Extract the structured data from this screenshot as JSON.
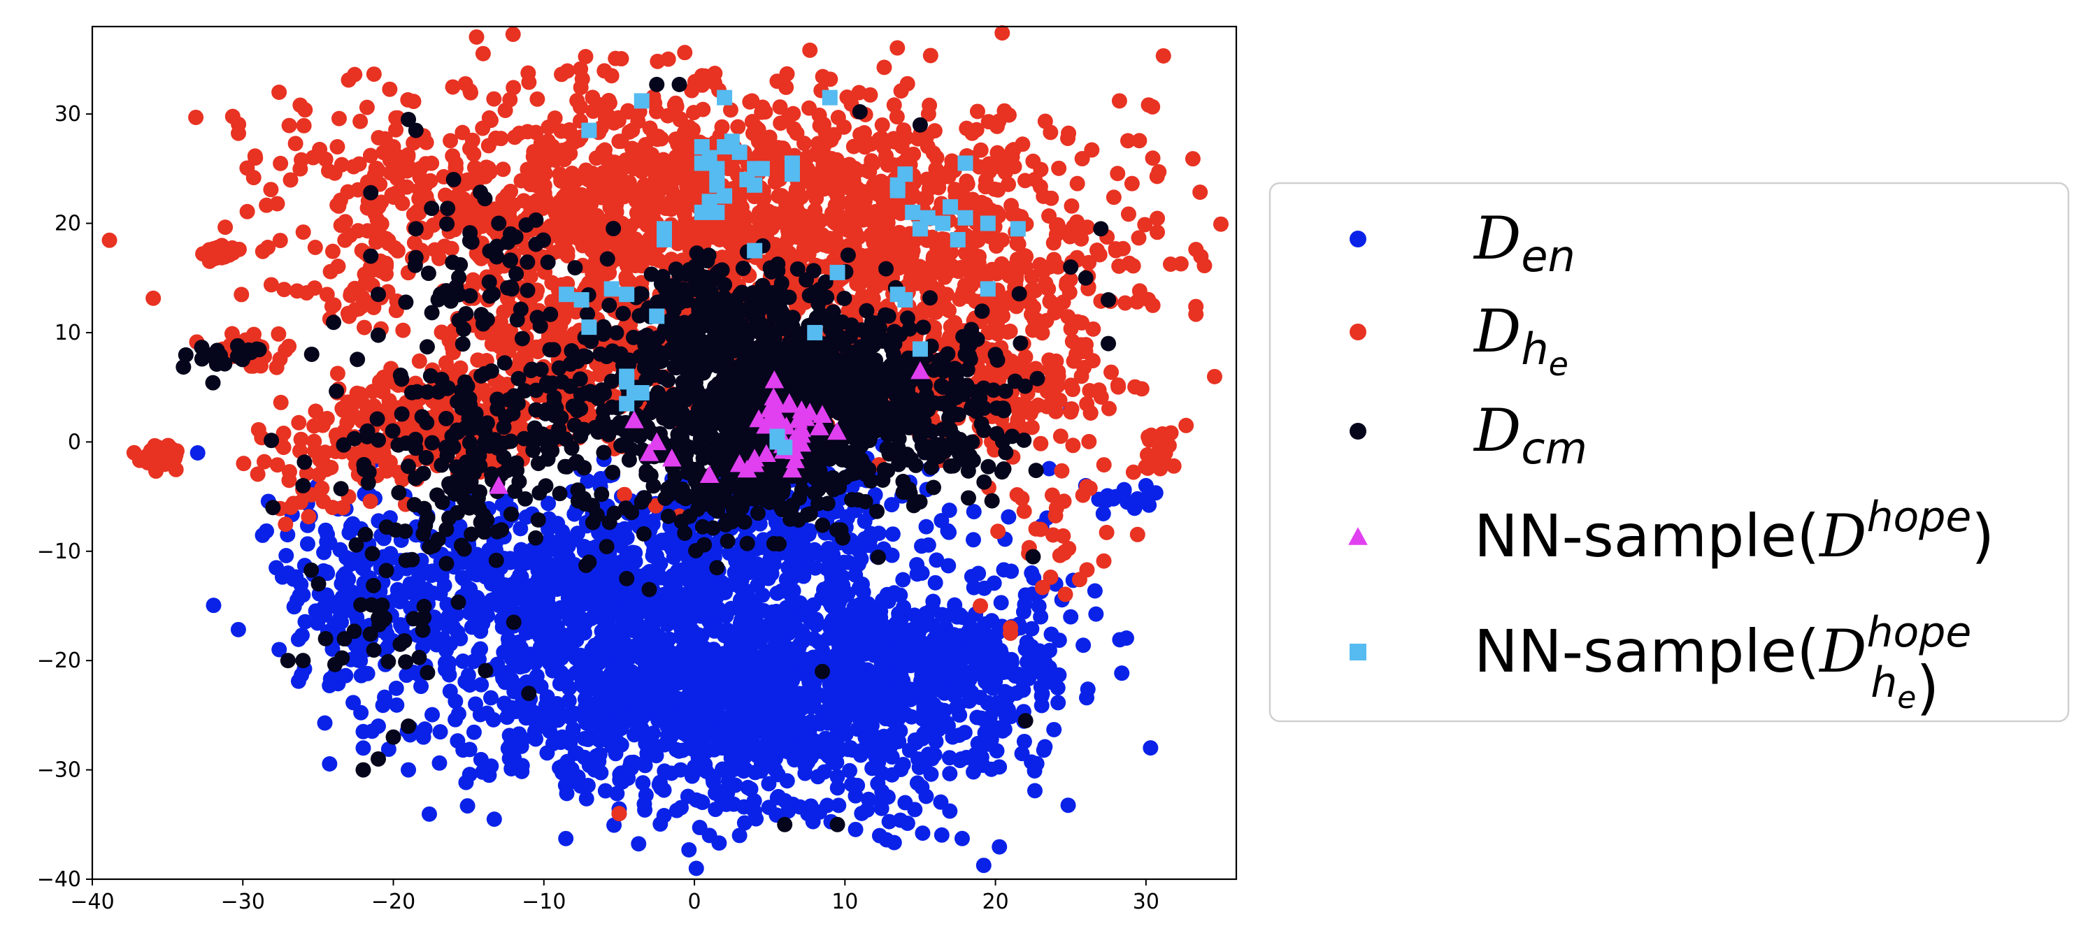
{
  "chart_data": {
    "type": "scatter",
    "title": "",
    "xlabel": "",
    "ylabel": "",
    "xlim": [
      -40,
      36
    ],
    "ylim": [
      -40,
      38
    ],
    "xticks": [
      -40,
      -30,
      -20,
      -10,
      0,
      10,
      20,
      30
    ],
    "yticks": [
      -40,
      -30,
      -20,
      -10,
      0,
      10,
      20,
      30
    ],
    "xtick_labels": [
      "−40",
      "−30",
      "−20",
      "−10",
      "0",
      "10",
      "20",
      "30"
    ],
    "ytick_labels": [
      "−40",
      "−30",
      "−20",
      "−10",
      "0",
      "10",
      "20",
      "30"
    ],
    "grid": false,
    "legend_position": "right",
    "series": [
      {
        "name": "D_en",
        "color": "#0a22e8",
        "marker": "circle",
        "clusters": [
          {
            "cx": 2,
            "cy": -23,
            "sx": 8.5,
            "sy": 5.5,
            "n": 1500
          },
          {
            "cx": 14,
            "cy": -20,
            "sx": 4.5,
            "sy": 4,
            "n": 320
          },
          {
            "cx": -10,
            "cy": -13,
            "sx": 6.5,
            "sy": 3.5,
            "n": 420
          },
          {
            "cx": -22,
            "cy": -14,
            "sx": 3.5,
            "sy": 5,
            "n": 150
          },
          {
            "cx": 3,
            "cy": -8,
            "sx": 7,
            "sy": 3,
            "n": 350
          },
          {
            "cx": 20,
            "cy": -20,
            "sx": 2.5,
            "sy": 3,
            "n": 80
          },
          {
            "cx": 29,
            "cy": -5,
            "sx": 1.5,
            "sy": 0.8,
            "n": 14
          }
        ],
        "points": [
          [
            -26,
            -14
          ],
          [
            -27,
            -12
          ],
          [
            -24,
            -15
          ],
          [
            -18,
            -27
          ],
          [
            -19,
            -30
          ],
          [
            -22,
            -28
          ],
          [
            -21,
            -26
          ],
          [
            22,
            -14
          ],
          [
            23,
            -16
          ],
          [
            24,
            -13
          ],
          [
            25,
            -16
          ],
          [
            26,
            -4
          ],
          [
            28,
            -5
          ],
          [
            30,
            -4
          ],
          [
            25,
            3
          ],
          [
            -33,
            -1
          ],
          [
            1,
            -36
          ],
          [
            3,
            -36
          ],
          [
            -5,
            -34
          ],
          [
            14,
            -33
          ]
        ]
      },
      {
        "name": "D_he",
        "color": "#e83222",
        "marker": "circle",
        "clusters": [
          {
            "cx": 0,
            "cy": 22,
            "sx": 13,
            "sy": 5.5,
            "n": 1400
          },
          {
            "cx": 15,
            "cy": 14,
            "sx": 7,
            "sy": 4.5,
            "n": 420
          },
          {
            "cx": -18,
            "cy": 1.5,
            "sx": 4,
            "sy": 2.5,
            "n": 260
          },
          {
            "cx": -8,
            "cy": 8,
            "sx": 5,
            "sy": 4,
            "n": 260
          },
          {
            "cx": 19,
            "cy": 5,
            "sx": 4.5,
            "sy": 3,
            "n": 180
          },
          {
            "cx": -31.8,
            "cy": 17.3,
            "sx": 0.5,
            "sy": 0.4,
            "n": 40
          },
          {
            "cx": -35.5,
            "cy": -1.3,
            "sx": 0.6,
            "sy": 0.5,
            "n": 40
          },
          {
            "cx": -29.5,
            "cy": 8.5,
            "sx": 1.4,
            "sy": 0.8,
            "n": 30
          },
          {
            "cx": 31,
            "cy": -1,
            "sx": 0.9,
            "sy": 1.1,
            "n": 22
          },
          {
            "cx": -26,
            "cy": -3,
            "sx": 2,
            "sy": 2.5,
            "n": 40
          },
          {
            "cx": -22,
            "cy": 15,
            "sx": 2,
            "sy": 3,
            "n": 40
          },
          {
            "cx": 24,
            "cy": -8,
            "sx": 2,
            "sy": 3,
            "n": 30
          }
        ],
        "points": [
          [
            -26.5,
            27.3
          ],
          [
            -5.5,
            33.5
          ],
          [
            0.5,
            33.5
          ],
          [
            5.5,
            33
          ],
          [
            24,
            5
          ],
          [
            28,
            17.5
          ],
          [
            21,
            -17.5
          ],
          [
            -4,
            25
          ],
          [
            23,
            -8
          ],
          [
            -5,
            -34
          ],
          [
            -20,
            27
          ],
          [
            -18,
            28
          ],
          [
            19,
            -15
          ],
          [
            21,
            -17
          ]
        ]
      },
      {
        "name": "D_cm",
        "color": "#05051c",
        "marker": "circle",
        "clusters": [
          {
            "cx": 5,
            "cy": 4.5,
            "sx": 4.3,
            "sy": 4.3,
            "n": 850
          },
          {
            "cx": 13,
            "cy": 4,
            "sx": 3.5,
            "sy": 3,
            "n": 200
          },
          {
            "cx": 1,
            "cy": 12,
            "sx": 3,
            "sy": 2.5,
            "n": 120
          },
          {
            "cx": 3,
            "cy": -4,
            "sx": 4,
            "sy": 2.5,
            "n": 160
          },
          {
            "cx": -10,
            "cy": 3,
            "sx": 6,
            "sy": 4.5,
            "n": 210
          },
          {
            "cx": -16,
            "cy": -3,
            "sx": 3.5,
            "sy": 4,
            "n": 90
          },
          {
            "cx": 17,
            "cy": 0,
            "sx": 3,
            "sy": 3,
            "n": 60
          },
          {
            "cx": -13.5,
            "cy": 17,
            "sx": 3,
            "sy": 3.5,
            "n": 50
          },
          {
            "cx": -31,
            "cy": 8,
            "sx": 1.5,
            "sy": 0.9,
            "n": 20
          },
          {
            "cx": -21,
            "cy": -16,
            "sx": 2,
            "sy": 3.5,
            "n": 35
          }
        ],
        "points": [
          [
            -2.5,
            32.7
          ],
          [
            -1,
            32.7
          ],
          [
            11,
            30.2
          ],
          [
            15,
            29
          ],
          [
            -19,
            29.5
          ],
          [
            -18.5,
            28.5
          ],
          [
            -16,
            24
          ],
          [
            -21.5,
            22.8
          ],
          [
            -13,
            20
          ],
          [
            -18.5,
            19.5
          ],
          [
            -21.5,
            17
          ],
          [
            -21,
            13.5
          ],
          [
            8.5,
            -21
          ],
          [
            1.5,
            -11.5
          ],
          [
            -7,
            -11
          ],
          [
            -4.5,
            -12.5
          ],
          [
            -3,
            -13.5
          ],
          [
            -12,
            -16.5
          ],
          [
            -11,
            -23
          ],
          [
            -19,
            -26
          ],
          [
            -22,
            -30
          ],
          [
            -21,
            -29
          ],
          [
            -20,
            -27
          ],
          [
            22,
            -25.5
          ],
          [
            22.5,
            -10.5
          ],
          [
            9.5,
            -35
          ],
          [
            6,
            -35
          ],
          [
            -26,
            -20
          ],
          [
            -27,
            -20
          ],
          [
            -24.5,
            -18
          ],
          [
            27.5,
            9
          ],
          [
            26,
            15
          ],
          [
            27,
            19.5
          ],
          [
            27.5,
            13
          ],
          [
            25,
            16
          ],
          [
            18,
            8
          ],
          [
            20,
            8
          ],
          [
            -28,
            -6
          ],
          [
            -26,
            -4
          ]
        ]
      },
      {
        "name": "NN-sample(D^hope)",
        "color": "#e040f0",
        "marker": "triangle",
        "clusters": [
          {
            "cx": 6.5,
            "cy": 1.5,
            "sx": 1.3,
            "sy": 1.3,
            "n": 30
          }
        ],
        "points": [
          [
            3.5,
            -2.5
          ],
          [
            4,
            -1.5
          ],
          [
            3,
            -2
          ],
          [
            -4,
            2
          ],
          [
            -3,
            -1
          ],
          [
            -2.5,
            0
          ],
          [
            -1.5,
            -1.5
          ],
          [
            1,
            -3
          ],
          [
            15,
            6.5
          ],
          [
            -13,
            -4
          ],
          [
            6.5,
            -2.5
          ],
          [
            8.5,
            2.5
          ],
          [
            4,
            -2
          ],
          [
            5,
            3
          ],
          [
            5.5,
            3.5
          ]
        ]
      },
      {
        "name": "NN-sample(D_he^hope)",
        "color": "#55bbf0",
        "marker": "square",
        "points": [
          [
            -3.5,
            31.2
          ],
          [
            2,
            31.5
          ],
          [
            9,
            31.5
          ],
          [
            -7,
            28.5
          ],
          [
            -8.5,
            13.5
          ],
          [
            -7.5,
            13
          ],
          [
            -5.5,
            14
          ],
          [
            -4.5,
            13.5
          ],
          [
            -2.5,
            11.5
          ],
          [
            -7,
            10.5
          ],
          [
            -4.5,
            5.5
          ],
          [
            -4,
            4.5
          ],
          [
            -4.5,
            3.5
          ],
          [
            -3.5,
            4.5
          ],
          [
            -4.5,
            6
          ],
          [
            0.5,
            27
          ],
          [
            1,
            26
          ],
          [
            2,
            27
          ],
          [
            1.5,
            25
          ],
          [
            1.5,
            24
          ],
          [
            3,
            26.5
          ],
          [
            2.5,
            27.5
          ],
          [
            0.5,
            25.5
          ],
          [
            1.5,
            23.5
          ],
          [
            4,
            25
          ],
          [
            3.5,
            24
          ],
          [
            4,
            23.5
          ],
          [
            4.5,
            25
          ],
          [
            6.5,
            25.5
          ],
          [
            6.5,
            24.5
          ],
          [
            1,
            22
          ],
          [
            1.5,
            21
          ],
          [
            2,
            22.5
          ],
          [
            0.5,
            21
          ],
          [
            -2,
            19.5
          ],
          [
            -2,
            18.5
          ],
          [
            4,
            17.5
          ],
          [
            9.5,
            15.5
          ],
          [
            8,
            10
          ],
          [
            13.5,
            13.5
          ],
          [
            14,
            13
          ],
          [
            13.5,
            23.5
          ],
          [
            14,
            24.5
          ],
          [
            13.5,
            23
          ],
          [
            14.5,
            21
          ],
          [
            15,
            19.5
          ],
          [
            15.5,
            20.5
          ],
          [
            16.5,
            20
          ],
          [
            17,
            21.5
          ],
          [
            18,
            20.5
          ],
          [
            17.5,
            18.5
          ],
          [
            19.5,
            20
          ],
          [
            21.5,
            19.5
          ],
          [
            18,
            25.5
          ],
          [
            19.5,
            14
          ],
          [
            15,
            8.5
          ],
          [
            5.5,
            0
          ],
          [
            6,
            -0.5
          ],
          [
            5.5,
            0.5
          ]
        ]
      }
    ]
  },
  "legend": {
    "items": [
      {
        "color": "#0a22e8",
        "marker": "circle",
        "base": "D",
        "sub": "en",
        "sup": ""
      },
      {
        "color": "#e83222",
        "marker": "circle",
        "base": "D",
        "sub": "h",
        "subsub": "e",
        "sup": ""
      },
      {
        "color": "#05051c",
        "marker": "circle",
        "base": "D",
        "sub": "cm",
        "sup": ""
      },
      {
        "color": "#e040f0",
        "marker": "triangle",
        "prefix": "NN-sample(",
        "base": "D",
        "sup": "hope",
        "suffix": ")"
      },
      {
        "color": "#55bbf0",
        "marker": "square",
        "prefix": "NN-sample(",
        "base": "D",
        "sup": "hope",
        "sub": "h",
        "subsub": "e",
        "suffix": ")"
      }
    ]
  }
}
